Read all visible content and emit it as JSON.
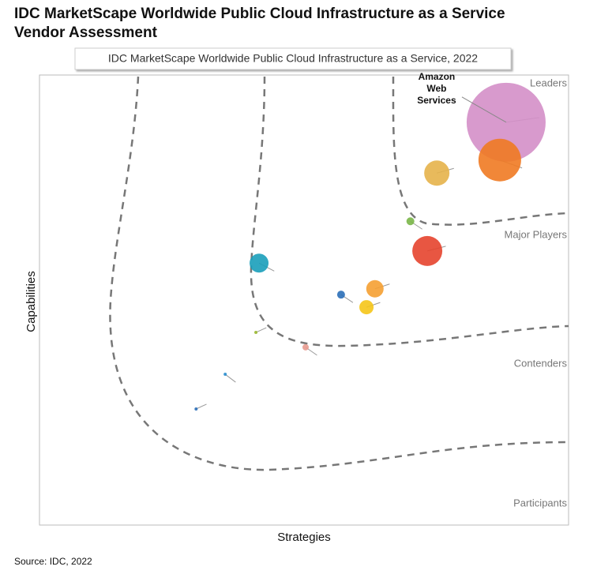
{
  "chart_data": {
    "type": "bubble",
    "title": "IDC MarketScape Worldwide Public Cloud Infrastructure as a Service Vendor Assessment",
    "subtitle": "IDC MarketScape Worldwide Public Cloud Infrastructure as a Service, 2022",
    "x_label": "Strategies",
    "y_label": "Capabilities",
    "zones": [
      "Leaders",
      "Major Players",
      "Contenders",
      "Participants"
    ],
    "source": "Source: IDC, 2022",
    "xlim": [
      0,
      100
    ],
    "ylim": [
      0,
      100
    ],
    "points": [
      {
        "label": "Amazon Web Services",
        "x": 88.2,
        "y": 89.5,
        "size": 50,
        "color": "#d48fc8"
      },
      {
        "x": 87.0,
        "y": 81.1,
        "size": 27,
        "color": "#f07a22"
      },
      {
        "x": 75.1,
        "y": 78.2,
        "size": 16,
        "color": "#e6b24a"
      },
      {
        "x": 70.1,
        "y": 67.5,
        "size": 5,
        "color": "#7ab648"
      },
      {
        "x": 73.3,
        "y": 60.9,
        "size": 19,
        "color": "#e5442e"
      },
      {
        "x": 41.5,
        "y": 58.2,
        "size": 12,
        "color": "#1a9fba"
      },
      {
        "x": 63.4,
        "y": 52.5,
        "size": 11,
        "color": "#f5a032"
      },
      {
        "x": 57.0,
        "y": 51.2,
        "size": 5,
        "color": "#2b6fb8"
      },
      {
        "x": 61.8,
        "y": 48.4,
        "size": 9,
        "color": "#f5c518"
      },
      {
        "x": 50.3,
        "y": 39.5,
        "size": 4,
        "color": "#e89a8f"
      },
      {
        "x": 40.9,
        "y": 42.8,
        "size": 2,
        "color": "#9ab830"
      },
      {
        "x": 35.1,
        "y": 33.5,
        "size": 2,
        "color": "#2b8fd0"
      },
      {
        "x": 29.6,
        "y": 25.8,
        "size": 2,
        "color": "#2b6fb8"
      }
    ]
  }
}
